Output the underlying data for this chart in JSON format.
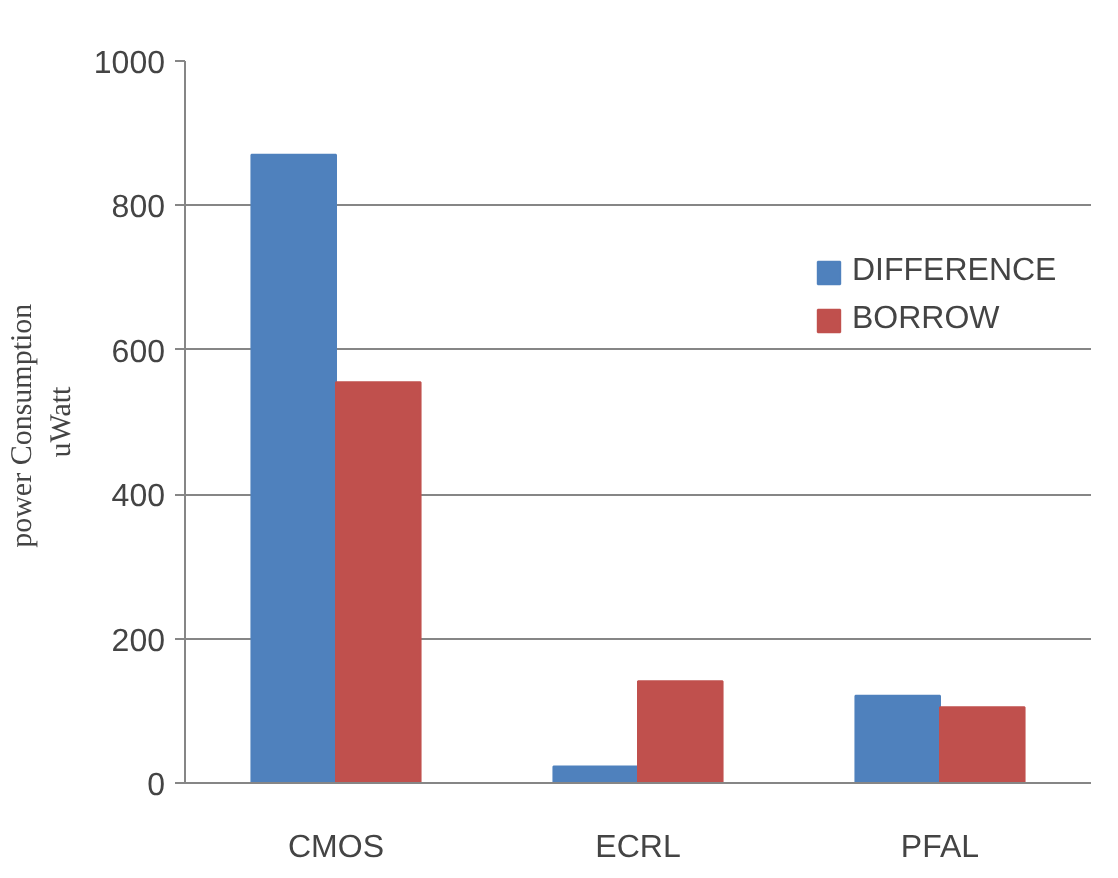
{
  "chart_data": {
    "type": "bar",
    "ylabel": "power  Consumption\nuWatt",
    "categories": [
      "CMOS",
      "ECRL",
      "PFAL"
    ],
    "series": [
      {
        "name": "DIFFERENCE",
        "color": "#4f81bd",
        "values": [
          870,
          23,
          121
        ]
      },
      {
        "name": "BORROW",
        "color": "#c0504d",
        "values": [
          555,
          141,
          105
        ]
      }
    ],
    "ylim": [
      0,
      1000
    ],
    "yticks": [
      0,
      200,
      400,
      600,
      800,
      1000
    ],
    "grid": "y",
    "legend": "right"
  }
}
